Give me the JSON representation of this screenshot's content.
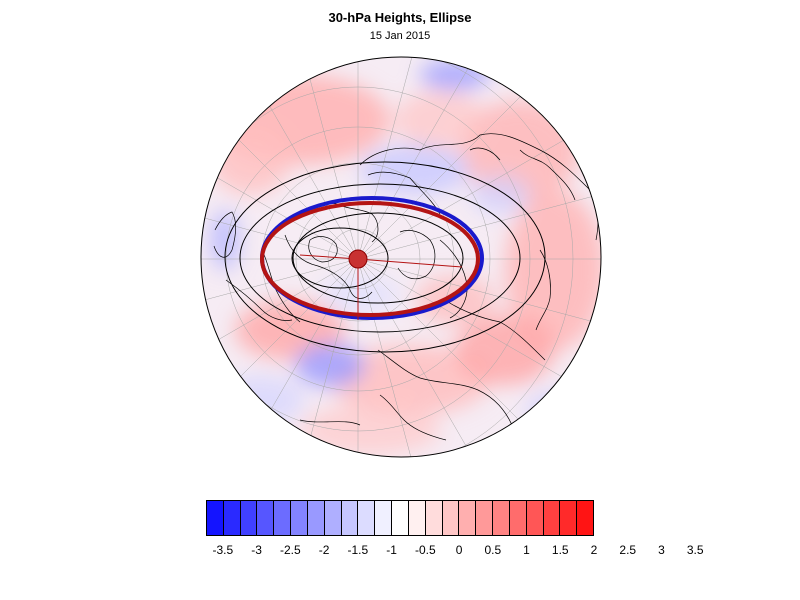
{
  "title": "30-hPa Heights, Ellipse",
  "date": "15 Jan 2015",
  "colorbar": {
    "colors": [
      "#1414ff",
      "#2a2aff",
      "#4040ff",
      "#5656ff",
      "#6c6cff",
      "#8383ff",
      "#9999ff",
      "#afafff",
      "#c6c6ff",
      "#dcdcff",
      "#f0f0ff",
      "#ffffff",
      "#fff0f0",
      "#ffdcdc",
      "#ffc6c6",
      "#ffafaf",
      "#ff9999",
      "#ff8383",
      "#ff6c6c",
      "#ff5656",
      "#ff4040",
      "#ff2a2a",
      "#ff1414"
    ],
    "tick_labels": [
      "-3.5",
      "-3",
      "-2.5",
      "-2",
      "-1.5",
      "-1",
      "-0.5",
      "0",
      "0.5",
      "1",
      "1.5",
      "2",
      "2.5",
      "3",
      "3.5"
    ]
  },
  "map": {
    "projection": "polar-stereographic",
    "hemisphere": "north",
    "fill": "height anomaly",
    "ellipse_colors": {
      "fit": "#b01010",
      "edge": "#1010c0",
      "contour": "#000000"
    }
  }
}
